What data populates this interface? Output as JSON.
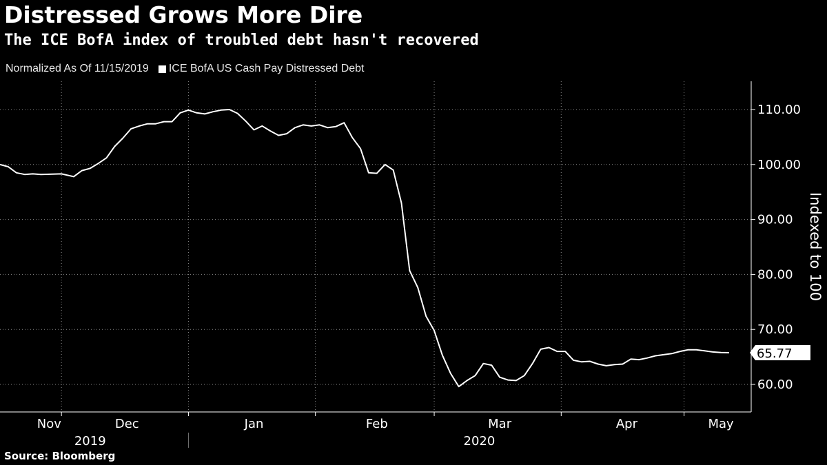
{
  "chart_data": {
    "type": "line",
    "title": "Distressed Grows More Dire",
    "subtitle": "The ICE BofA index of troubled debt hasn't recovered",
    "legend_note": "Normalized As Of 11/15/2019",
    "ylabel": "Indexed to 100",
    "source": "Source: Bloomberg",
    "ylim": [
      55,
      115
    ],
    "yticks": [
      60,
      70,
      80,
      90,
      100,
      110
    ],
    "ytick_labels": [
      "60.00",
      "70.00",
      "80.00",
      "90.00",
      "100.00",
      "110.00"
    ],
    "last_value_label": "65.77",
    "grid": true,
    "x_month_labels": [
      {
        "label": "Nov",
        "date": "2019-11-27"
      },
      {
        "label": "Dec",
        "date": "2019-12-16"
      },
      {
        "label": "Jan",
        "date": "2020-01-16"
      },
      {
        "label": "Feb",
        "date": "2020-02-15"
      },
      {
        "label": "Mar",
        "date": "2020-03-16"
      },
      {
        "label": "Apr",
        "date": "2020-04-16"
      },
      {
        "label": "May",
        "date": "2020-05-09"
      }
    ],
    "x_gridlines": [
      "2019-11-30",
      "2019-12-31",
      "2020-01-31",
      "2020-02-29",
      "2020-03-31",
      "2020-04-30"
    ],
    "x_year_labels": [
      {
        "label": "2019",
        "date": "2019-12-07"
      },
      {
        "label": "2020",
        "date": "2020-03-11"
      }
    ],
    "year_divider": "2019-12-31",
    "series": [
      {
        "name": "ICE BofA US Cash Pay Distressed Debt",
        "color": "#ffffff",
        "x": [
          "2019-11-15",
          "2019-11-17",
          "2019-11-19",
          "2019-11-21",
          "2019-11-23",
          "2019-11-25",
          "2019-11-30",
          "2019-12-03",
          "2019-12-05",
          "2019-12-07",
          "2019-12-09",
          "2019-12-11",
          "2019-12-13",
          "2019-12-15",
          "2019-12-17",
          "2019-12-19",
          "2019-12-21",
          "2019-12-23",
          "2019-12-25",
          "2019-12-27",
          "2019-12-29",
          "2019-12-31",
          "2020-01-02",
          "2020-01-04",
          "2020-01-06",
          "2020-01-08",
          "2020-01-10",
          "2020-01-12",
          "2020-01-14",
          "2020-01-16",
          "2020-01-18",
          "2020-01-20",
          "2020-01-22",
          "2020-01-24",
          "2020-01-26",
          "2020-01-28",
          "2020-01-30",
          "2020-02-01",
          "2020-02-03",
          "2020-02-05",
          "2020-02-07",
          "2020-02-09",
          "2020-02-11",
          "2020-02-13",
          "2020-02-15",
          "2020-02-17",
          "2020-02-19",
          "2020-02-21",
          "2020-02-23",
          "2020-02-25",
          "2020-02-27",
          "2020-02-29",
          "2020-03-02",
          "2020-03-04",
          "2020-03-06",
          "2020-03-08",
          "2020-03-10",
          "2020-03-12",
          "2020-03-14",
          "2020-03-16",
          "2020-03-18",
          "2020-03-20",
          "2020-03-22",
          "2020-03-24",
          "2020-03-26",
          "2020-03-28",
          "2020-03-30",
          "2020-04-01",
          "2020-04-03",
          "2020-04-05",
          "2020-04-07",
          "2020-04-09",
          "2020-04-11",
          "2020-04-13",
          "2020-04-15",
          "2020-04-17",
          "2020-04-19",
          "2020-04-21",
          "2020-04-23",
          "2020-04-25",
          "2020-04-27",
          "2020-04-29",
          "2020-05-01",
          "2020-05-03",
          "2020-05-05",
          "2020-05-07",
          "2020-05-09",
          "2020-05-11"
        ],
        "values": [
          100.0,
          99.6,
          98.5,
          98.2,
          98.3,
          98.2,
          98.3,
          97.8,
          98.9,
          99.3,
          100.2,
          101.2,
          103.3,
          104.8,
          106.5,
          107.0,
          107.4,
          107.4,
          107.8,
          107.8,
          109.4,
          109.9,
          109.4,
          109.2,
          109.6,
          109.9,
          110.0,
          109.3,
          107.9,
          106.3,
          107.0,
          106.1,
          105.3,
          105.6,
          106.7,
          107.2,
          107.0,
          107.2,
          106.7,
          106.9,
          107.6,
          104.9,
          102.9,
          98.5,
          98.4,
          100.0,
          99.0,
          93.0,
          80.7,
          77.6,
          72.4,
          69.8,
          65.3,
          62.0,
          59.6,
          60.7,
          61.6,
          63.8,
          63.5,
          61.3,
          60.8,
          60.7,
          61.6,
          63.8,
          66.4,
          66.7,
          66.0,
          66.0,
          64.4,
          64.1,
          64.2,
          63.7,
          63.4,
          63.6,
          63.7,
          64.6,
          64.5,
          64.8,
          65.2,
          65.4,
          65.6,
          66.0,
          66.3,
          66.3,
          66.1,
          65.9,
          65.8,
          65.77
        ]
      }
    ]
  }
}
